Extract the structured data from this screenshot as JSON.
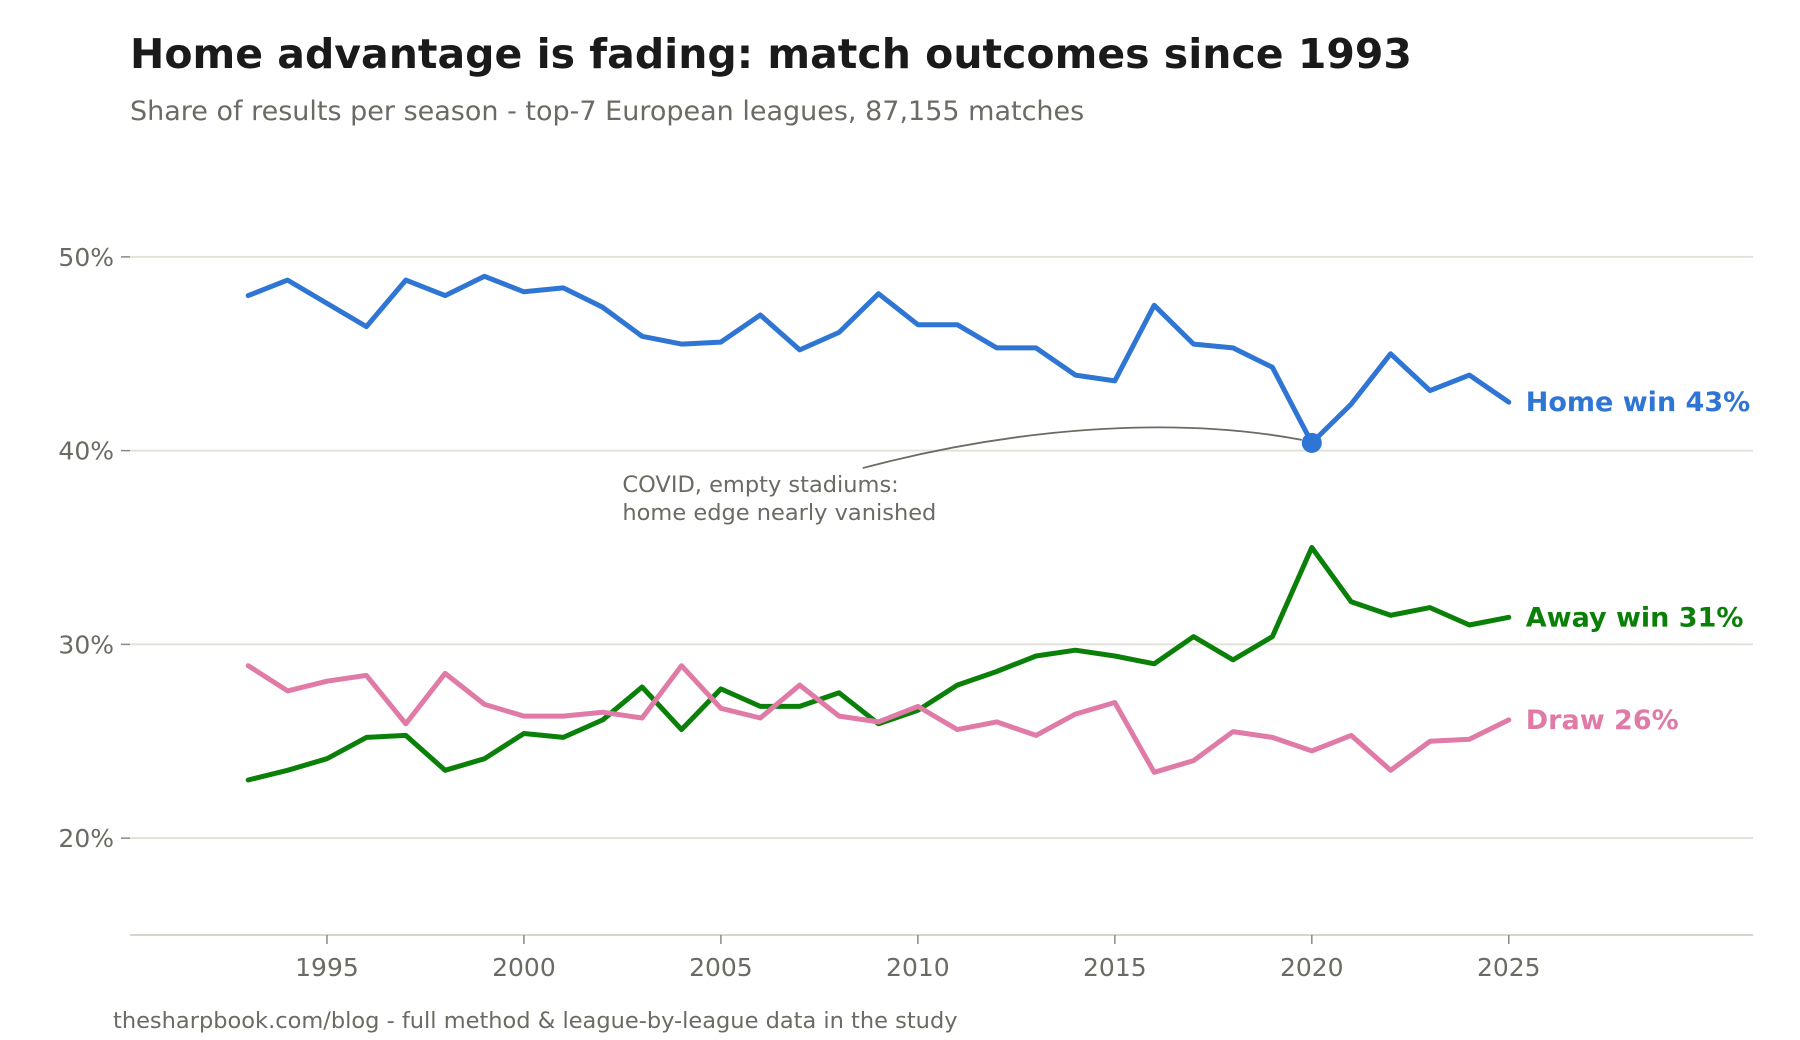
{
  "title": "Home advantage is fading: match outcomes since 1993",
  "subtitle": "Share of results per season - top-7 European leagues, 87,155 matches",
  "footer": "thesharpbook.com/blog - full method & league-by-league data in the study",
  "chart_data": {
    "type": "line",
    "title": "Home advantage is fading: match outcomes since 1993",
    "subtitle": "Share of results per season - top-7 European leagues, 87,155 matches",
    "xlabel": "",
    "ylabel": "",
    "xlim": [
      1990,
      2031.2
    ],
    "ylim": [
      15,
      55
    ],
    "x_ticks": [
      1995,
      2000,
      2005,
      2010,
      2015,
      2020,
      2025
    ],
    "x_tick_labels": [
      "1995",
      "2000",
      "2005",
      "2010",
      "2015",
      "2020",
      "2025"
    ],
    "y_ticks": [
      20,
      30,
      40,
      50
    ],
    "y_tick_labels": [
      "20%",
      "30%",
      "40%",
      "50%"
    ],
    "grid": "horizontal",
    "legend": "direct labels at line ends (right)",
    "x": [
      1993,
      1994,
      1995,
      1996,
      1997,
      1998,
      1999,
      2000,
      2001,
      2002,
      2003,
      2004,
      2005,
      2006,
      2007,
      2008,
      2009,
      2010,
      2011,
      2012,
      2013,
      2014,
      2015,
      2016,
      2017,
      2018,
      2019,
      2020,
      2021,
      2022,
      2023,
      2024,
      2025
    ],
    "series": [
      {
        "name": "Home win",
        "end_label": "Home win  43%",
        "color": "#2e75d4",
        "values": [
          48.0,
          48.8,
          47.6,
          46.4,
          48.8,
          48.0,
          49.0,
          48.2,
          48.4,
          47.4,
          45.9,
          45.5,
          45.6,
          47.0,
          45.2,
          46.1,
          48.1,
          46.5,
          46.5,
          45.3,
          45.3,
          43.9,
          43.6,
          47.5,
          45.5,
          45.3,
          44.3,
          40.4,
          42.4,
          45.0,
          43.1,
          43.9,
          42.5
        ]
      },
      {
        "name": "Away win",
        "end_label": "Away win  31%",
        "color": "#0a8008",
        "values": [
          23.0,
          23.5,
          24.1,
          25.2,
          25.3,
          23.5,
          24.1,
          25.4,
          25.2,
          26.1,
          27.8,
          25.6,
          27.7,
          26.8,
          26.8,
          27.5,
          25.9,
          26.6,
          27.9,
          28.6,
          29.4,
          29.7,
          29.4,
          29.0,
          30.4,
          29.2,
          30.4,
          35.0,
          32.2,
          31.5,
          31.9,
          31.0,
          31.4
        ]
      },
      {
        "name": "Draw",
        "end_label": "Draw  26%",
        "color": "#e07aa6",
        "values": [
          28.9,
          27.6,
          28.1,
          28.4,
          25.9,
          28.5,
          26.9,
          26.3,
          26.3,
          26.5,
          26.2,
          28.9,
          26.7,
          26.2,
          27.9,
          26.3,
          26.0,
          26.8,
          25.6,
          26.0,
          25.3,
          26.4,
          27.0,
          23.4,
          24.0,
          25.5,
          25.2,
          24.5,
          25.3,
          23.5,
          25.0,
          25.1,
          26.1
        ]
      }
    ],
    "annotation": {
      "text_lines": [
        "COVID, empty stadiums:",
        "home edge nearly vanished"
      ],
      "x": 2020,
      "y": 40.4,
      "series": "Home win"
    }
  }
}
